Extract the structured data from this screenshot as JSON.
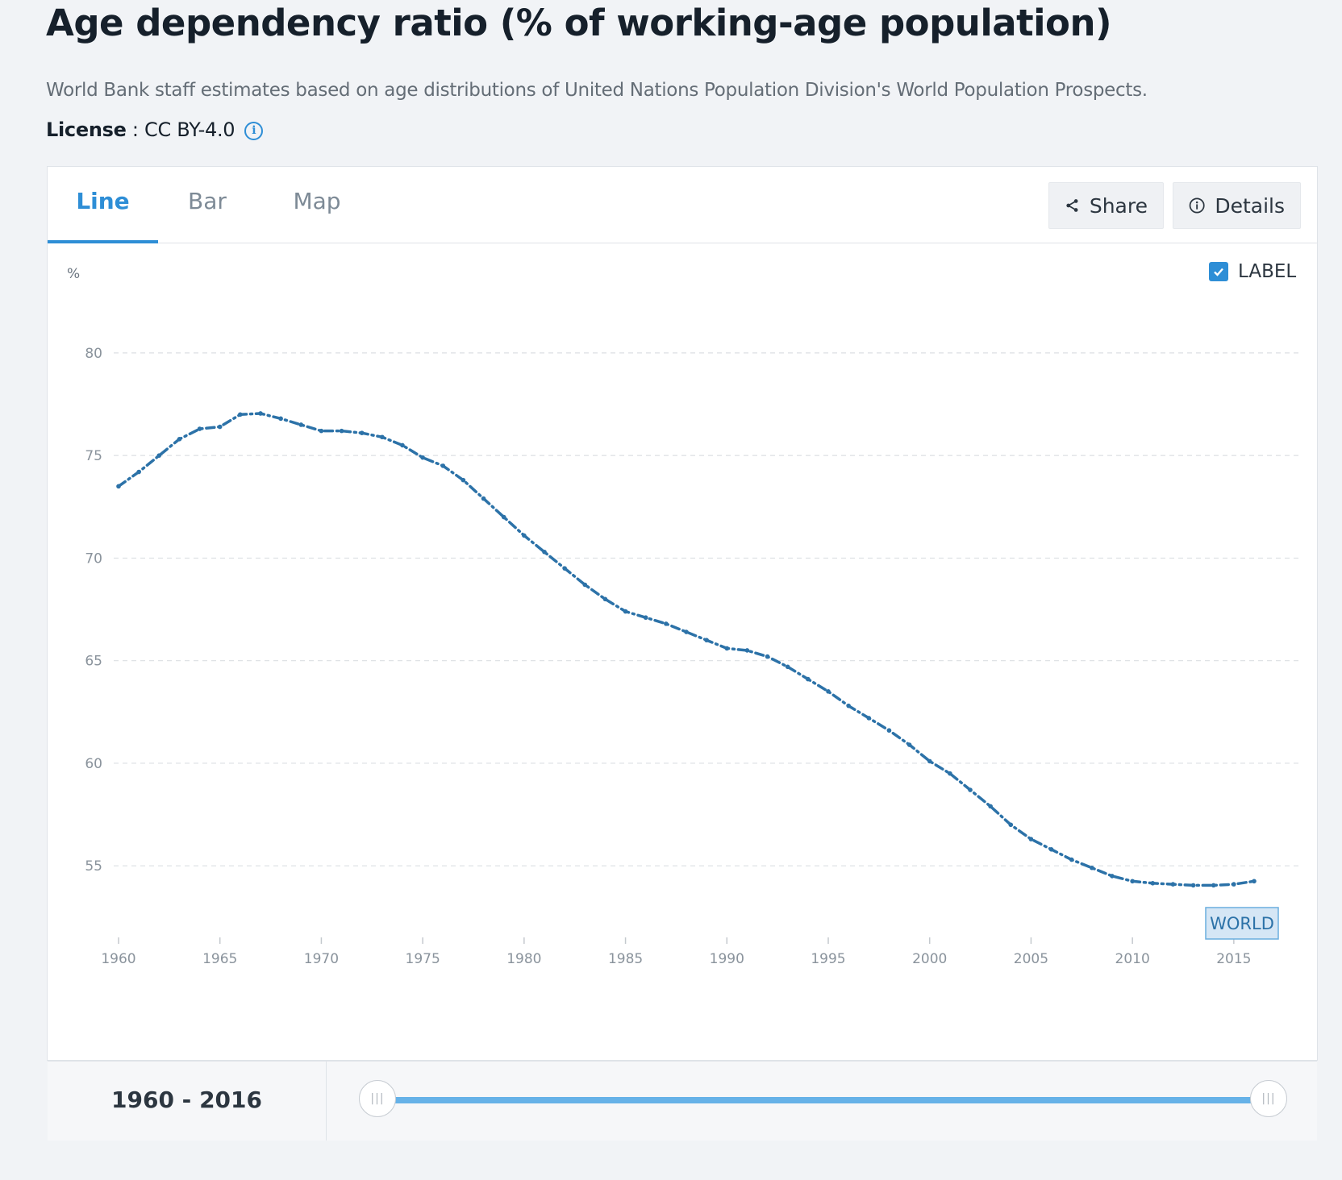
{
  "page": {
    "title": "Age dependency ratio (% of working-age population)",
    "description": "World Bank staff estimates based on age distributions of United Nations Population Division's World Population Prospects.",
    "license_key": "License",
    "license_sep": " : ",
    "license_value": "CC BY-4.0",
    "info_icon": "i"
  },
  "tabs": [
    {
      "label": "Line",
      "active": true
    },
    {
      "label": "Bar",
      "active": false
    },
    {
      "label": "Map",
      "active": false
    }
  ],
  "toolbar": {
    "share_label": "Share",
    "details_label": "Details"
  },
  "label_toggle": {
    "text": "LABEL",
    "checked": true
  },
  "range": {
    "start": "1960",
    "sep": " - ",
    "end": "2016",
    "handle_glyph": "|||"
  },
  "colors": {
    "accent": "#2e8ed6",
    "series": "#2c72a8",
    "slider": "#66b2e8"
  },
  "chart_data": {
    "type": "line",
    "ylabel": "%",
    "ylim": [
      51,
      82
    ],
    "yticks": [
      55,
      60,
      65,
      70,
      75,
      80
    ],
    "xlim": [
      1960,
      2016
    ],
    "xticks": [
      1960,
      1965,
      1970,
      1975,
      1980,
      1985,
      1990,
      1995,
      2000,
      2005,
      2010,
      2015
    ],
    "grid": true,
    "line_style": "dash-dot",
    "series": [
      {
        "name": "WORLD",
        "x": [
          1960,
          1961,
          1962,
          1963,
          1964,
          1965,
          1966,
          1967,
          1968,
          1969,
          1970,
          1971,
          1972,
          1973,
          1974,
          1975,
          1976,
          1977,
          1978,
          1979,
          1980,
          1981,
          1982,
          1983,
          1984,
          1985,
          1986,
          1987,
          1988,
          1989,
          1990,
          1991,
          1992,
          1993,
          1994,
          1995,
          1996,
          1997,
          1998,
          1999,
          2000,
          2001,
          2002,
          2003,
          2004,
          2005,
          2006,
          2007,
          2008,
          2009,
          2010,
          2011,
          2012,
          2013,
          2014,
          2015,
          2016
        ],
        "y": [
          73.5,
          74.2,
          75.0,
          75.8,
          76.3,
          76.4,
          77.0,
          77.05,
          76.8,
          76.5,
          76.2,
          76.2,
          76.1,
          75.9,
          75.5,
          74.9,
          74.5,
          73.8,
          72.9,
          72.0,
          71.1,
          70.3,
          69.5,
          68.7,
          68.0,
          67.4,
          67.1,
          66.8,
          66.4,
          66.0,
          65.6,
          65.5,
          65.2,
          64.7,
          64.1,
          63.5,
          62.8,
          62.2,
          61.6,
          60.9,
          60.1,
          59.5,
          58.7,
          57.9,
          57.0,
          56.3,
          55.8,
          55.3,
          54.9,
          54.5,
          54.25,
          54.15,
          54.1,
          54.05,
          54.05,
          54.1,
          54.25
        ]
      }
    ]
  }
}
